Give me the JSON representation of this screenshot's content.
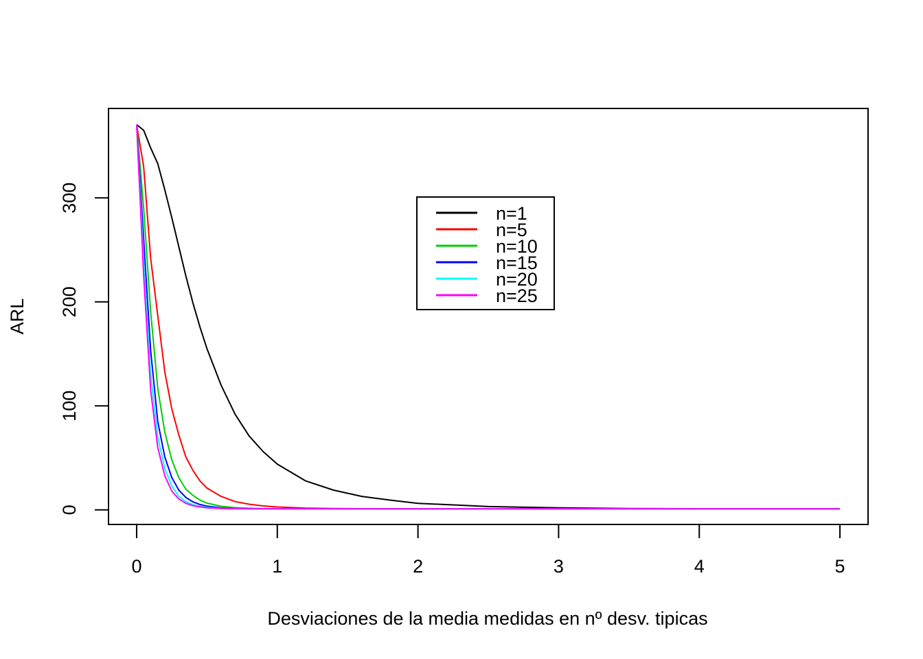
{
  "chart_data": {
    "type": "line",
    "title": "",
    "xlabel": "Desviaciones de la media medidas en nº desv. tipicas",
    "ylabel": "ARL",
    "xlim": [
      -0.2,
      5.2
    ],
    "ylim": [
      -14,
      386
    ],
    "xticks": [
      0,
      1,
      2,
      3,
      4,
      5
    ],
    "yticks": [
      0,
      100,
      200,
      300
    ],
    "grid": false,
    "legend_position": "top-center",
    "x": [
      0,
      0.05,
      0.1,
      0.15,
      0.2,
      0.25,
      0.3,
      0.35,
      0.4,
      0.45,
      0.5,
      0.6,
      0.7,
      0.8,
      0.9,
      1.0,
      1.2,
      1.4,
      1.6,
      1.8,
      2.0,
      2.5,
      3.0,
      3.5,
      4.0,
      4.5,
      5.0
    ],
    "series": [
      {
        "name": "n=1",
        "color": "#000000",
        "values": [
          370.4,
          365,
          348,
          333,
          308,
          281,
          253,
          225,
          199,
          176,
          155,
          120,
          92,
          71,
          56,
          44,
          28,
          19,
          13,
          9.4,
          6.3,
          3.2,
          2.0,
          1.4,
          1.2,
          1.1,
          1.0
        ]
      },
      {
        "name": "n=5",
        "color": "#ff0000",
        "values": [
          370.4,
          330,
          242,
          187,
          133,
          97,
          72,
          51,
          38,
          28,
          21,
          13,
          8,
          5.5,
          3.8,
          2.8,
          1.8,
          1.35,
          1.15,
          1.06,
          1.02,
          1.0,
          1.0,
          1.0,
          1.0,
          1.0,
          1.0
        ]
      },
      {
        "name": "n=10",
        "color": "#00cd00",
        "values": [
          370.4,
          290,
          190,
          117,
          75,
          48,
          31,
          20,
          14,
          9.5,
          6.5,
          3.5,
          2.2,
          1.6,
          1.25,
          1.1,
          1.02,
          1.0,
          1.0,
          1.0,
          1.0,
          1.0,
          1.0,
          1.0,
          1.0,
          1.0,
          1.0
        ]
      },
      {
        "name": "n=15",
        "color": "#0000ff",
        "values": [
          370.4,
          260,
          153,
          85,
          51,
          31,
          19,
          12,
          7.7,
          5.2,
          3.6,
          2.0,
          1.4,
          1.1,
          1.03,
          1.0,
          1.0,
          1.0,
          1.0,
          1.0,
          1.0,
          1.0,
          1.0,
          1.0,
          1.0,
          1.0,
          1.0
        ]
      },
      {
        "name": "n=20",
        "color": "#00ffff",
        "values": [
          370.4,
          240,
          130,
          70,
          40,
          23,
          13,
          8,
          5.1,
          3.5,
          2.5,
          1.5,
          1.15,
          1.05,
          1.0,
          1.0,
          1.0,
          1.0,
          1.0,
          1.0,
          1.0,
          1.0,
          1.0,
          1.0,
          1.0,
          1.0,
          1.0
        ]
      },
      {
        "name": "n=25",
        "color": "#ff00ff",
        "values": [
          370.4,
          225,
          115,
          60,
          33,
          18,
          10.5,
          6.3,
          4.0,
          2.8,
          2.0,
          1.3,
          1.08,
          1.02,
          1.0,
          1.0,
          1.0,
          1.0,
          1.0,
          1.0,
          1.0,
          1.0,
          1.0,
          1.0,
          1.0,
          1.0,
          1.0
        ]
      }
    ]
  }
}
